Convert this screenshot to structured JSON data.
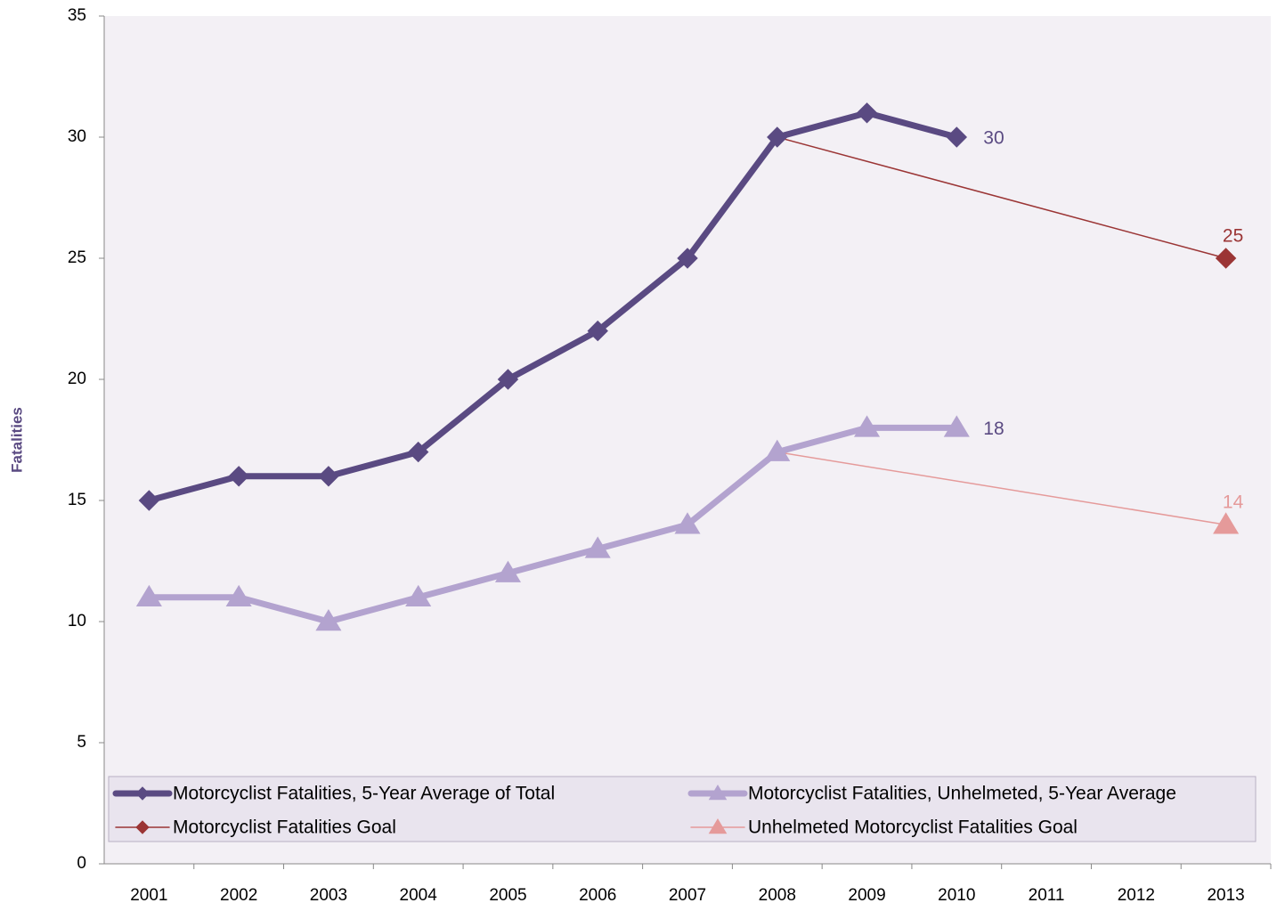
{
  "chart_data": {
    "type": "line",
    "y_label": "Fatalities",
    "categories": [
      "2001",
      "2002",
      "2003",
      "2004",
      "2005",
      "2006",
      "2007",
      "2008",
      "2009",
      "2010",
      "2011",
      "2012",
      "2013"
    ],
    "ylim": [
      0,
      35
    ],
    "yticks": [
      0,
      5,
      10,
      15,
      20,
      25,
      30,
      35
    ],
    "grid": false,
    "legend": "bottom",
    "series": [
      {
        "name": "Motorcyclist Fatalities, 5-Year Average of Total",
        "color": "#5a4a82",
        "marker": "diamond",
        "line_width": 7,
        "values": [
          15,
          16,
          16,
          17,
          20,
          22,
          25,
          30,
          31,
          30,
          null,
          null,
          null
        ],
        "label_last": true,
        "label_position": "right"
      },
      {
        "name": "Motorcyclist Fatalities, Unhelmeted, 5-Year Average",
        "color": "#b3a3cf",
        "marker": "triangle",
        "line_width": 7,
        "values": [
          11,
          11,
          10,
          11,
          12,
          13,
          14,
          17,
          18,
          18,
          null,
          null,
          null
        ],
        "label_last": true,
        "label_position": "right"
      },
      {
        "name": "Motorcyclist Fatalities Goal",
        "color": "#9b3535",
        "marker": "diamond",
        "line_width": 1.5,
        "x": [
          "2008",
          "2013"
        ],
        "values": [
          30,
          25
        ],
        "label_last": true,
        "label_position": "above"
      },
      {
        "name": "Unhelmeted Motorcyclist Fatalities Goal",
        "color": "#e59a9a",
        "marker": "triangle",
        "line_width": 1.5,
        "x": [
          "2008",
          "2013"
        ],
        "values": [
          17,
          14
        ],
        "label_last": true,
        "label_position": "above"
      }
    ]
  }
}
